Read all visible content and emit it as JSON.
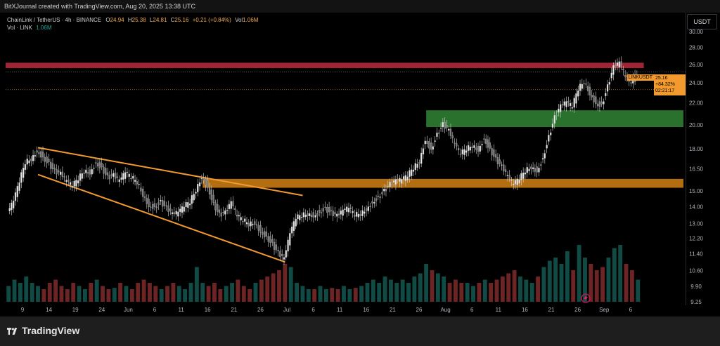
{
  "header": {
    "attribution": "BitXJournal created with TradingView.com, Aug 20, 2025 13:38 UTC"
  },
  "legend": {
    "pair": "ChainLink / TetherUS · 4h · BINANCE",
    "o_label": "O",
    "o_value": "24.94",
    "h_label": "H",
    "h_value": "25.38",
    "l_label": "L",
    "l_value": "24.81",
    "c_label": "C",
    "c_value": "25.16",
    "change": "+0.21 (+0.84%)",
    "vol_label": "Vol",
    "vol_value": "1.06M",
    "vol_line_label": "Vol · LINK",
    "vol_line_value": "1.06M"
  },
  "axis": {
    "currency": "USDT"
  },
  "price_tag": {
    "symbol": "LINKUSDT",
    "price": "25.16",
    "percent": "+84.32%",
    "countdown": "02:21:17"
  },
  "footer": {
    "brand": "TradingView"
  },
  "colors": {
    "up": "#26a69a",
    "down": "#ef5350",
    "candle": "#d8d8d8",
    "trendline": "#f29a2e",
    "resistance_zone": "#b2283a",
    "support_zone_green": "#2e7d32",
    "support_zone_orange": "#c77a14"
  },
  "chart_data": {
    "type": "candlestick",
    "symbol": "LINKUSDT",
    "interval": "4h",
    "ylim": [
      9.25,
      32.0
    ],
    "y_scale": "log",
    "y_ticks": [
      30.0,
      28.0,
      26.0,
      24.0,
      22.0,
      20.0,
      18.0,
      16.5,
      15.0,
      14.0,
      13.0,
      12.2,
      11.4,
      10.6,
      9.9,
      9.25
    ],
    "y_tick_labels": [
      "30.00",
      "28.00",
      "26.00",
      "24.00",
      "22.00",
      "20.00",
      "18.00",
      "16.50",
      "15.00",
      "14.00",
      "13.00",
      "12.20",
      "11.40",
      "10.60",
      "9.90",
      "9.25"
    ],
    "x_ticks": [
      "9",
      "14",
      "19",
      "24",
      "Jun",
      "6",
      "11",
      "16",
      "21",
      "26",
      "Jul",
      "6",
      "11",
      "16",
      "21",
      "26",
      "Aug",
      "6",
      "11",
      "16",
      "21",
      "26",
      "Sep",
      "6"
    ],
    "x_tick_index": [
      0,
      1,
      2,
      3,
      4,
      5,
      6,
      7,
      8,
      9,
      10,
      11,
      12,
      13,
      14,
      15,
      16,
      17,
      18,
      19,
      20,
      21,
      22,
      23
    ],
    "price_path": [
      [
        0,
        13.6
      ],
      [
        1,
        14.3
      ],
      [
        2,
        15.6
      ],
      [
        3,
        17.0
      ],
      [
        4,
        17.3
      ],
      [
        5,
        17.9
      ],
      [
        6,
        17.4
      ],
      [
        7,
        16.9
      ],
      [
        8,
        16.3
      ],
      [
        9,
        16.1
      ],
      [
        10,
        15.6
      ],
      [
        11,
        15.3
      ],
      [
        12,
        15.8
      ],
      [
        13,
        16.4
      ],
      [
        14,
        16.3
      ],
      [
        15,
        17.0
      ],
      [
        16,
        16.6
      ],
      [
        17,
        15.9
      ],
      [
        18,
        16.0
      ],
      [
        19,
        15.6
      ],
      [
        20,
        16.2
      ],
      [
        21,
        15.9
      ],
      [
        22,
        15.6
      ],
      [
        23,
        14.8
      ],
      [
        24,
        14.1
      ],
      [
        25,
        14.0
      ],
      [
        26,
        14.3
      ],
      [
        27,
        13.9
      ],
      [
        28,
        13.5
      ],
      [
        29,
        13.6
      ],
      [
        30,
        14.0
      ],
      [
        31,
        14.3
      ],
      [
        32,
        15.1
      ],
      [
        33,
        16.0
      ],
      [
        34,
        15.3
      ],
      [
        35,
        14.2
      ],
      [
        36,
        13.5
      ],
      [
        37,
        13.6
      ],
      [
        38,
        14.2
      ],
      [
        39,
        13.4
      ],
      [
        40,
        13.2
      ],
      [
        41,
        13.0
      ],
      [
        42,
        13.1
      ],
      [
        43,
        12.6
      ],
      [
        44,
        12.3
      ],
      [
        45,
        11.9
      ],
      [
        46,
        11.4
      ],
      [
        47,
        11.1
      ],
      [
        48,
        12.4
      ],
      [
        49,
        13.3
      ],
      [
        50,
        13.5
      ],
      [
        51,
        13.6
      ],
      [
        52,
        13.5
      ],
      [
        53,
        13.7
      ],
      [
        54,
        13.9
      ],
      [
        55,
        13.6
      ],
      [
        56,
        13.4
      ],
      [
        57,
        13.7
      ],
      [
        58,
        13.9
      ],
      [
        59,
        13.5
      ],
      [
        60,
        13.6
      ],
      [
        61,
        13.9
      ],
      [
        62,
        14.3
      ],
      [
        63,
        14.6
      ],
      [
        64,
        15.0
      ],
      [
        65,
        15.4
      ],
      [
        66,
        15.6
      ],
      [
        67,
        15.7
      ],
      [
        68,
        16.0
      ],
      [
        69,
        16.6
      ],
      [
        70,
        17.1
      ],
      [
        71,
        18.8
      ],
      [
        72,
        18.0
      ],
      [
        73,
        19.2
      ],
      [
        74,
        20.0
      ],
      [
        75,
        19.4
      ],
      [
        76,
        18.3
      ],
      [
        77,
        17.6
      ],
      [
        78,
        18.0
      ],
      [
        79,
        18.3
      ],
      [
        80,
        18.0
      ],
      [
        81,
        18.9
      ],
      [
        82,
        18.0
      ],
      [
        83,
        17.2
      ],
      [
        84,
        16.6
      ],
      [
        85,
        15.9
      ],
      [
        86,
        15.4
      ],
      [
        87,
        15.8
      ],
      [
        88,
        16.4
      ],
      [
        89,
        16.7
      ],
      [
        90,
        16.4
      ],
      [
        91,
        17.3
      ],
      [
        92,
        19.0
      ],
      [
        93,
        20.6
      ],
      [
        94,
        21.6
      ],
      [
        95,
        22.0
      ],
      [
        96,
        21.6
      ],
      [
        97,
        23.4
      ],
      [
        98,
        24.2
      ],
      [
        99,
        23.0
      ],
      [
        100,
        22.0
      ],
      [
        101,
        21.8
      ],
      [
        102,
        23.6
      ],
      [
        103,
        25.6
      ],
      [
        104,
        26.1
      ],
      [
        105,
        24.6
      ],
      [
        106,
        24.1
      ],
      [
        107,
        25.16
      ]
    ],
    "volume_relative": [
      0.25,
      0.35,
      0.3,
      0.4,
      0.3,
      0.25,
      0.2,
      0.3,
      0.35,
      0.25,
      0.2,
      0.3,
      0.25,
      0.2,
      0.3,
      0.35,
      0.25,
      0.2,
      0.22,
      0.3,
      0.25,
      0.2,
      0.3,
      0.35,
      0.3,
      0.25,
      0.2,
      0.25,
      0.3,
      0.25,
      0.2,
      0.3,
      0.55,
      0.3,
      0.25,
      0.3,
      0.2,
      0.25,
      0.3,
      0.35,
      0.25,
      0.2,
      0.3,
      0.35,
      0.4,
      0.45,
      0.5,
      0.6,
      0.55,
      0.3,
      0.25,
      0.2,
      0.2,
      0.25,
      0.2,
      0.22,
      0.2,
      0.25,
      0.2,
      0.22,
      0.25,
      0.3,
      0.35,
      0.3,
      0.4,
      0.35,
      0.3,
      0.35,
      0.3,
      0.4,
      0.45,
      0.6,
      0.5,
      0.45,
      0.4,
      0.3,
      0.35,
      0.3,
      0.3,
      0.25,
      0.3,
      0.35,
      0.3,
      0.35,
      0.4,
      0.45,
      0.5,
      0.4,
      0.35,
      0.3,
      0.4,
      0.55,
      0.65,
      0.7,
      0.6,
      0.8,
      0.5,
      0.9,
      0.7,
      0.6,
      0.5,
      0.55,
      0.7,
      0.85,
      0.9,
      0.6,
      0.5,
      0.35
    ],
    "zones": [
      {
        "kind": "resistance",
        "color": "#b2283a",
        "low": 25.6,
        "high": 26.2,
        "start_index": 0,
        "end_index": 108
      },
      {
        "kind": "support",
        "color": "#2e7d32",
        "low": 19.8,
        "high": 21.3,
        "start_index": 71,
        "end_index": 115
      },
      {
        "kind": "support",
        "color": "#c77a14",
        "low": 15.2,
        "high": 15.8,
        "start_index": 33,
        "end_index": 115
      }
    ],
    "trendlines": [
      {
        "from": [
          5,
          18.1
        ],
        "to": [
          50,
          14.7
        ]
      },
      {
        "from": [
          5,
          16.1
        ],
        "to": [
          47,
          11.0
        ]
      }
    ],
    "reference_lines": [
      {
        "value": 25.16,
        "style": "dotted"
      },
      {
        "value": 23.3,
        "style": "dotted"
      }
    ],
    "last_price": 25.16
  }
}
